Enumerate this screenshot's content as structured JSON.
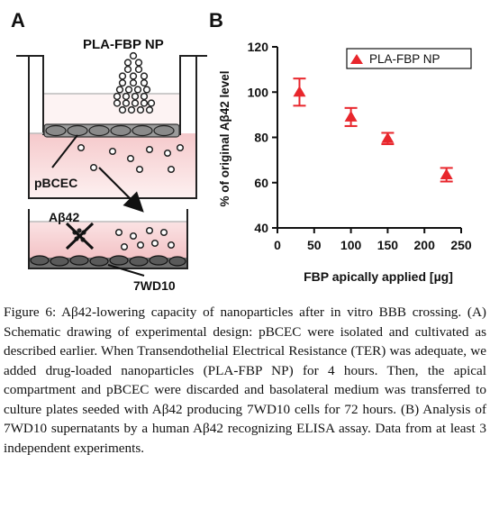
{
  "panel_a": {
    "letter": "A",
    "np_label": "PLA-FBP NP",
    "cell_label": "pBCEC",
    "abeta_label": "Aβ42",
    "cells_bottom_label": "7WD10"
  },
  "panel_b": {
    "letter": "B"
  },
  "chart_data": {
    "type": "scatter",
    "title": "",
    "xlabel": "FBP apically applied [µg]",
    "ylabel": "% of original Aβ42 level",
    "xlim": [
      0,
      250
    ],
    "ylim": [
      40,
      120
    ],
    "x_ticks": [
      0,
      50,
      100,
      150,
      200,
      250
    ],
    "y_ticks": [
      40,
      60,
      80,
      100,
      120
    ],
    "legend_position": "top-right",
    "grid": false,
    "marker_color": "#e8262c",
    "series": [
      {
        "name": "PLA-FBP NP",
        "x": [
          30,
          100,
          150,
          230
        ],
        "y": [
          100,
          89,
          79.5,
          63.5
        ],
        "err": [
          6,
          4,
          2.5,
          3
        ]
      }
    ]
  },
  "caption": {
    "label": "Figure 6:",
    "text": "Aβ42-lowering capacity of nanoparticles after in vitro BBB crossing. (A) Schematic drawing of experimental design: pBCEC were isolated and cultivated as described earlier. When Transendothelial Electrical Resistance (TER) was adequate, we added drug-loaded nanoparticles (PLA-FBP NP) for 4 hours. Then, the apical compartment and pBCEC were discarded and basolateral medium was transferred to culture plates seeded with Aβ42 producing 7WD10 cells for 72 hours. (B) Analysis of 7WD10 supernatants by a human Aβ42 recognizing ELISA assay. Data from at least 3 independent experiments."
  }
}
